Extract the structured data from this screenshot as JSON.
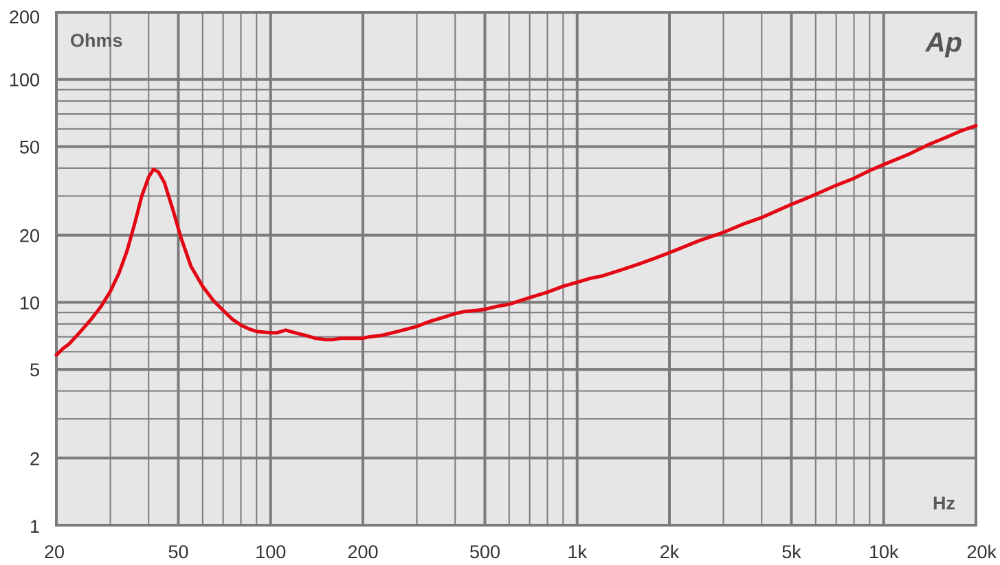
{
  "chart_data": {
    "type": "line",
    "x_scale": "log",
    "y_scale": "log",
    "xlim": [
      20,
      20000
    ],
    "ylim": [
      1,
      200
    ],
    "grid": true,
    "xlabel": "Hz",
    "ylabel": "Ohms",
    "logo": "Ap",
    "x_tick_labels": [
      {
        "value": 20,
        "label": "20"
      },
      {
        "value": 50,
        "label": "50"
      },
      {
        "value": 100,
        "label": "100"
      },
      {
        "value": 200,
        "label": "200"
      },
      {
        "value": 500,
        "label": "500"
      },
      {
        "value": 1000,
        "label": "1k"
      },
      {
        "value": 2000,
        "label": "2k"
      },
      {
        "value": 5000,
        "label": "5k"
      },
      {
        "value": 10000,
        "label": "10k"
      },
      {
        "value": 20000,
        "label": "20k"
      }
    ],
    "y_tick_labels": [
      {
        "value": 1,
        "label": "1"
      },
      {
        "value": 2,
        "label": "2"
      },
      {
        "value": 5,
        "label": "5"
      },
      {
        "value": 10,
        "label": "10"
      },
      {
        "value": 20,
        "label": "20"
      },
      {
        "value": 50,
        "label": "50"
      },
      {
        "value": 100,
        "label": "100"
      },
      {
        "value": 200,
        "label": "200"
      }
    ],
    "colors": {
      "plot_background": "#e6e6e6",
      "grid": "#7b7b7b",
      "series": "#e30613"
    },
    "series": [
      {
        "points": [
          [
            20,
            5.8
          ],
          [
            21,
            6.2
          ],
          [
            22,
            6.5
          ],
          [
            24,
            7.4
          ],
          [
            26,
            8.4
          ],
          [
            28,
            9.6
          ],
          [
            30,
            11.2
          ],
          [
            32,
            13.5
          ],
          [
            34,
            17.0
          ],
          [
            36,
            22.5
          ],
          [
            38,
            30.0
          ],
          [
            40,
            36.5
          ],
          [
            41.5,
            39.5
          ],
          [
            43,
            38.5
          ],
          [
            45,
            34.5
          ],
          [
            48,
            26.0
          ],
          [
            51,
            19.5
          ],
          [
            55,
            14.5
          ],
          [
            60,
            11.8
          ],
          [
            65,
            10.2
          ],
          [
            70,
            9.2
          ],
          [
            75,
            8.4
          ],
          [
            80,
            7.9
          ],
          [
            85,
            7.6
          ],
          [
            90,
            7.4
          ],
          [
            100,
            7.3
          ],
          [
            105,
            7.3
          ],
          [
            112,
            7.5
          ],
          [
            120,
            7.3
          ],
          [
            130,
            7.1
          ],
          [
            140,
            6.9
          ],
          [
            150,
            6.8
          ],
          [
            160,
            6.8
          ],
          [
            170,
            6.9
          ],
          [
            185,
            6.9
          ],
          [
            200,
            6.9
          ],
          [
            210,
            7.0
          ],
          [
            230,
            7.1
          ],
          [
            250,
            7.3
          ],
          [
            280,
            7.6
          ],
          [
            300,
            7.8
          ],
          [
            330,
            8.2
          ],
          [
            370,
            8.6
          ],
          [
            400,
            8.9
          ],
          [
            430,
            9.1
          ],
          [
            470,
            9.2
          ],
          [
            500,
            9.3
          ],
          [
            550,
            9.6
          ],
          [
            600,
            9.8
          ],
          [
            700,
            10.5
          ],
          [
            800,
            11.1
          ],
          [
            900,
            11.8
          ],
          [
            1000,
            12.3
          ],
          [
            1100,
            12.8
          ],
          [
            1200,
            13.1
          ],
          [
            1400,
            14.0
          ],
          [
            1600,
            14.9
          ],
          [
            1800,
            15.8
          ],
          [
            2000,
            16.7
          ],
          [
            2200,
            17.6
          ],
          [
            2500,
            18.9
          ],
          [
            3000,
            20.6
          ],
          [
            3500,
            22.5
          ],
          [
            4000,
            24.0
          ],
          [
            4500,
            25.8
          ],
          [
            5000,
            27.5
          ],
          [
            5500,
            29.0
          ],
          [
            6000,
            30.5
          ],
          [
            7000,
            33.5
          ],
          [
            8000,
            36.0
          ],
          [
            9000,
            39.0
          ],
          [
            10000,
            41.5
          ],
          [
            12000,
            46.0
          ],
          [
            14000,
            51.0
          ],
          [
            16000,
            55.0
          ],
          [
            18000,
            59.0
          ],
          [
            20000,
            62.0
          ]
        ]
      }
    ]
  }
}
